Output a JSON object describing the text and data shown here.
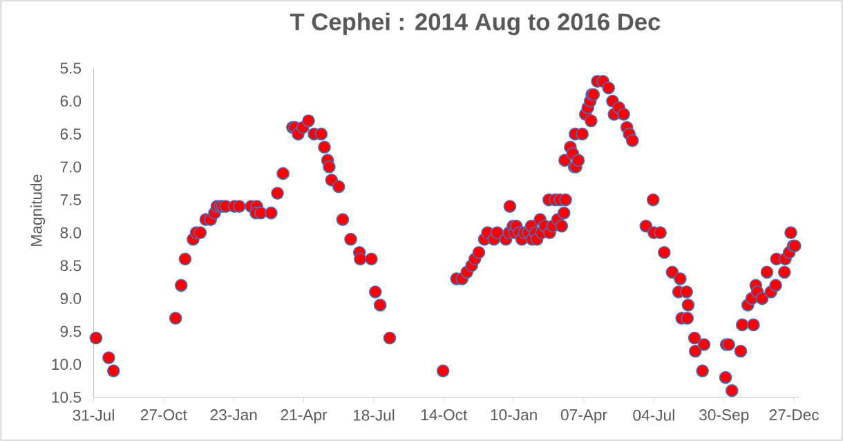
{
  "chart_data": {
    "type": "scatter",
    "title": "T Cephei : 2014 Aug to 2016 Dec",
    "ylabel": "Magnitude",
    "xlim": [
      "2014-07-31",
      "2017-01-02"
    ],
    "ylim": [
      10.5,
      5.5
    ],
    "xticks": [
      {
        "value": "2014-07-31",
        "label": "31-Jul"
      },
      {
        "value": "2014-10-27",
        "label": "27-Oct"
      },
      {
        "value": "2015-01-23",
        "label": "23-Jan"
      },
      {
        "value": "2015-04-21",
        "label": "21-Apr"
      },
      {
        "value": "2015-07-18",
        "label": "18-Jul"
      },
      {
        "value": "2015-10-14",
        "label": "14-Oct"
      },
      {
        "value": "2016-01-10",
        "label": "10-Jan"
      },
      {
        "value": "2016-04-07",
        "label": "07-Apr"
      },
      {
        "value": "2016-07-04",
        "label": "04-Jul"
      },
      {
        "value": "2016-09-30",
        "label": "30-Sep"
      },
      {
        "value": "2016-12-27",
        "label": "27-Dec"
      }
    ],
    "yticks": [
      5.5,
      {
        "value": 6,
        "label": "6.0"
      },
      6.5,
      {
        "value": 7,
        "label": "7.0"
      },
      7.5,
      {
        "value": 8,
        "label": "8.0"
      },
      8.5,
      {
        "value": 9,
        "label": "9.0"
      },
      9.5,
      {
        "value": 10,
        "label": "10.0"
      },
      10.5
    ],
    "marker": "circle",
    "series": [
      {
        "color": "#ff0000",
        "x": [
          "2014-08-03",
          "2014-08-19",
          "2014-08-25",
          "2014-11-11",
          "2014-11-18",
          "2014-11-23",
          "2014-12-03",
          "2014-12-07",
          "2014-12-12",
          "2014-12-19",
          "2014-12-25",
          "2014-12-30",
          "2015-01-02",
          "2015-01-06",
          "2015-01-09",
          "2015-01-13",
          "2015-01-24",
          "2015-01-30",
          "2015-02-14",
          "2015-02-21",
          "2015-02-20",
          "2015-02-26",
          "2015-03-11",
          "2015-03-19",
          "2015-03-26",
          "2015-04-07",
          "2015-04-10",
          "2015-04-14",
          "2015-04-20",
          "2015-04-27",
          "2015-05-04",
          "2015-05-13",
          "2015-05-17",
          "2015-05-21",
          "2015-05-23",
          "2015-05-26",
          "2015-06-04",
          "2015-06-09",
          "2015-06-19",
          "2015-06-30",
          "2015-07-01",
          "2015-07-15",
          "2015-07-20",
          "2015-07-26",
          "2015-08-07",
          "2015-10-13",
          "2015-10-30",
          "2015-11-06",
          "2015-11-12",
          "2015-11-18",
          "2015-11-22",
          "2015-11-27",
          "2015-12-04",
          "2015-12-08",
          "2015-12-16",
          "2015-12-20",
          "2015-12-31",
          "2016-01-04",
          "2016-01-05",
          "2016-01-09",
          "2016-01-11",
          "2016-01-13",
          "2016-01-17",
          "2016-01-20",
          "2016-01-23",
          "2016-01-28",
          "2016-02-01",
          "2016-02-02",
          "2016-02-06",
          "2016-02-08",
          "2016-02-12",
          "2016-02-14",
          "2016-02-18",
          "2016-02-23",
          "2016-02-24",
          "2016-02-28",
          "2016-03-02",
          "2016-03-05",
          "2016-03-08",
          "2016-03-10",
          "2016-03-13",
          "2016-03-14",
          "2016-03-15",
          "2016-03-21",
          "2016-03-24",
          "2016-03-26",
          "2016-03-28",
          "2016-03-27",
          "2016-03-31",
          "2016-04-05",
          "2016-04-09",
          "2016-04-12",
          "2016-04-15",
          "2016-04-16",
          "2016-04-17",
          "2016-04-19",
          "2016-04-24",
          "2016-05-01",
          "2016-05-08",
          "2016-05-13",
          "2016-05-15",
          "2016-05-21",
          "2016-05-27",
          "2016-05-31",
          "2016-06-03",
          "2016-06-07",
          "2016-06-24",
          "2016-07-03",
          "2016-07-04",
          "2016-07-12",
          "2016-07-17",
          "2016-07-27",
          "2016-08-04",
          "2016-08-06",
          "2016-08-08",
          "2016-08-14",
          "2016-08-15",
          "2016-08-16",
          "2016-08-24",
          "2016-08-25",
          "2016-09-03",
          "2016-09-05",
          "2016-10-02",
          "2016-10-03",
          "2016-10-06",
          "2016-10-10",
          "2016-10-21",
          "2016-10-23",
          "2016-10-30",
          "2016-11-04",
          "2016-11-06",
          "2016-11-09",
          "2016-11-11",
          "2016-11-17",
          "2016-11-23",
          "2016-11-28",
          "2016-12-04",
          "2016-12-05",
          "2016-12-15",
          "2016-12-16",
          "2016-12-21",
          "2016-12-23",
          "2016-12-26",
          "2016-12-28"
        ],
        "values": [
          9.6,
          9.9,
          10.1,
          9.3,
          8.8,
          8.4,
          8.1,
          8.0,
          8.0,
          7.8,
          7.8,
          7.7,
          7.6,
          7.6,
          7.6,
          7.6,
          7.6,
          7.6,
          7.6,
          7.6,
          7.7,
          7.7,
          7.7,
          7.4,
          7.1,
          6.4,
          6.4,
          6.5,
          6.4,
          6.3,
          6.5,
          6.5,
          6.7,
          6.9,
          7.0,
          7.2,
          7.3,
          7.8,
          8.1,
          8.3,
          8.4,
          8.4,
          8.9,
          9.1,
          9.6,
          10.1,
          8.7,
          8.7,
          8.6,
          8.5,
          8.4,
          8.3,
          8.1,
          8.0,
          8.1,
          8.0,
          8.1,
          8.0,
          7.6,
          7.9,
          8.0,
          7.9,
          8.0,
          8.1,
          8.0,
          8.0,
          7.9,
          8.1,
          8.0,
          8.1,
          7.8,
          8.0,
          7.9,
          7.5,
          8.0,
          7.9,
          7.5,
          7.8,
          7.5,
          7.9,
          7.7,
          6.9,
          7.5,
          6.7,
          6.8,
          7.0,
          7.0,
          6.5,
          6.9,
          6.5,
          6.2,
          6.1,
          6.0,
          6.3,
          5.9,
          5.9,
          5.7,
          5.7,
          5.8,
          6.0,
          6.2,
          6.1,
          6.2,
          6.4,
          6.5,
          6.6,
          7.9,
          7.5,
          8.0,
          8.0,
          8.3,
          8.6,
          8.9,
          8.7,
          9.3,
          8.9,
          9.3,
          9.1,
          9.6,
          9.8,
          10.1,
          9.7,
          10.2,
          9.7,
          9.7,
          10.4,
          9.8,
          9.4,
          9.1,
          9.0,
          9.4,
          8.8,
          8.9,
          9.0,
          8.6,
          8.9,
          8.8,
          8.4,
          8.6,
          8.4,
          8.3,
          8.0,
          8.2,
          8.2
        ]
      }
    ]
  }
}
